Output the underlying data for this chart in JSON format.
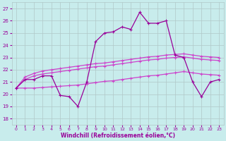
{
  "xlabel": "Windchill (Refroidissement éolien,°C)",
  "background_color": "#c8ecec",
  "grid_color": "#b0c8c8",
  "line_color_main": "#990099",
  "line_color_band": "#cc44cc",
  "xlim": [
    -0.5,
    23.5
  ],
  "ylim": [
    17.5,
    27.5
  ],
  "xticks": [
    0,
    1,
    2,
    3,
    4,
    5,
    6,
    7,
    8,
    9,
    10,
    11,
    12,
    13,
    14,
    15,
    16,
    17,
    18,
    19,
    20,
    21,
    22,
    23
  ],
  "yticks": [
    18,
    19,
    20,
    21,
    22,
    23,
    24,
    25,
    26,
    27
  ],
  "series_main": [
    20.5,
    21.2,
    21.2,
    21.5,
    21.5,
    19.9,
    19.8,
    19.0,
    21.0,
    24.3,
    25.0,
    25.1,
    25.5,
    25.3,
    26.7,
    25.8,
    25.8,
    26.0,
    23.2,
    23.0,
    21.0,
    19.8,
    21.0,
    21.2
  ],
  "series_upper": [
    20.5,
    21.4,
    21.7,
    21.9,
    22.0,
    22.1,
    22.2,
    22.3,
    22.4,
    22.5,
    22.55,
    22.65,
    22.75,
    22.85,
    22.95,
    23.05,
    23.1,
    23.2,
    23.25,
    23.3,
    23.2,
    23.1,
    23.05,
    23.0
  ],
  "series_middle": [
    20.5,
    21.2,
    21.5,
    21.65,
    21.75,
    21.85,
    21.95,
    22.05,
    22.15,
    22.25,
    22.3,
    22.4,
    22.5,
    22.6,
    22.7,
    22.8,
    22.85,
    22.95,
    23.0,
    23.05,
    22.95,
    22.85,
    22.8,
    22.75
  ],
  "series_lower": [
    20.5,
    20.5,
    20.5,
    20.55,
    20.6,
    20.65,
    20.7,
    20.75,
    20.85,
    20.95,
    21.05,
    21.1,
    21.2,
    21.3,
    21.4,
    21.5,
    21.55,
    21.65,
    21.75,
    21.85,
    21.75,
    21.65,
    21.6,
    21.55
  ]
}
